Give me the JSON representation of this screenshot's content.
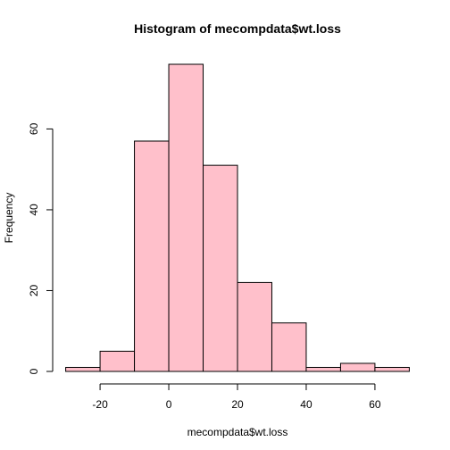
{
  "chart_data": {
    "type": "bar",
    "title": "Histogram of mecompdata$wt.loss",
    "xlabel": "mecompdata$wt.loss",
    "ylabel": "Frequency",
    "bins": [
      {
        "from": -30,
        "to": -20,
        "count": 1
      },
      {
        "from": -20,
        "to": -10,
        "count": 5
      },
      {
        "from": -10,
        "to": 0,
        "count": 57
      },
      {
        "from": 0,
        "to": 10,
        "count": 76
      },
      {
        "from": 10,
        "to": 20,
        "count": 51
      },
      {
        "from": 20,
        "to": 30,
        "count": 22
      },
      {
        "from": 30,
        "to": 40,
        "count": 12
      },
      {
        "from": 40,
        "to": 50,
        "count": 1
      },
      {
        "from": 50,
        "to": 60,
        "count": 2
      },
      {
        "from": 60,
        "to": 70,
        "count": 1
      }
    ],
    "xlim": [
      -30,
      70
    ],
    "ylim": [
      0,
      76
    ],
    "x_ticks": [
      "-20",
      "0",
      "20",
      "40",
      "60"
    ],
    "y_ticks": [
      "0",
      "20",
      "40",
      "60"
    ],
    "grid": false,
    "colors": {
      "bar_fill": "#FFC0CB",
      "bar_stroke": "#000000"
    }
  }
}
